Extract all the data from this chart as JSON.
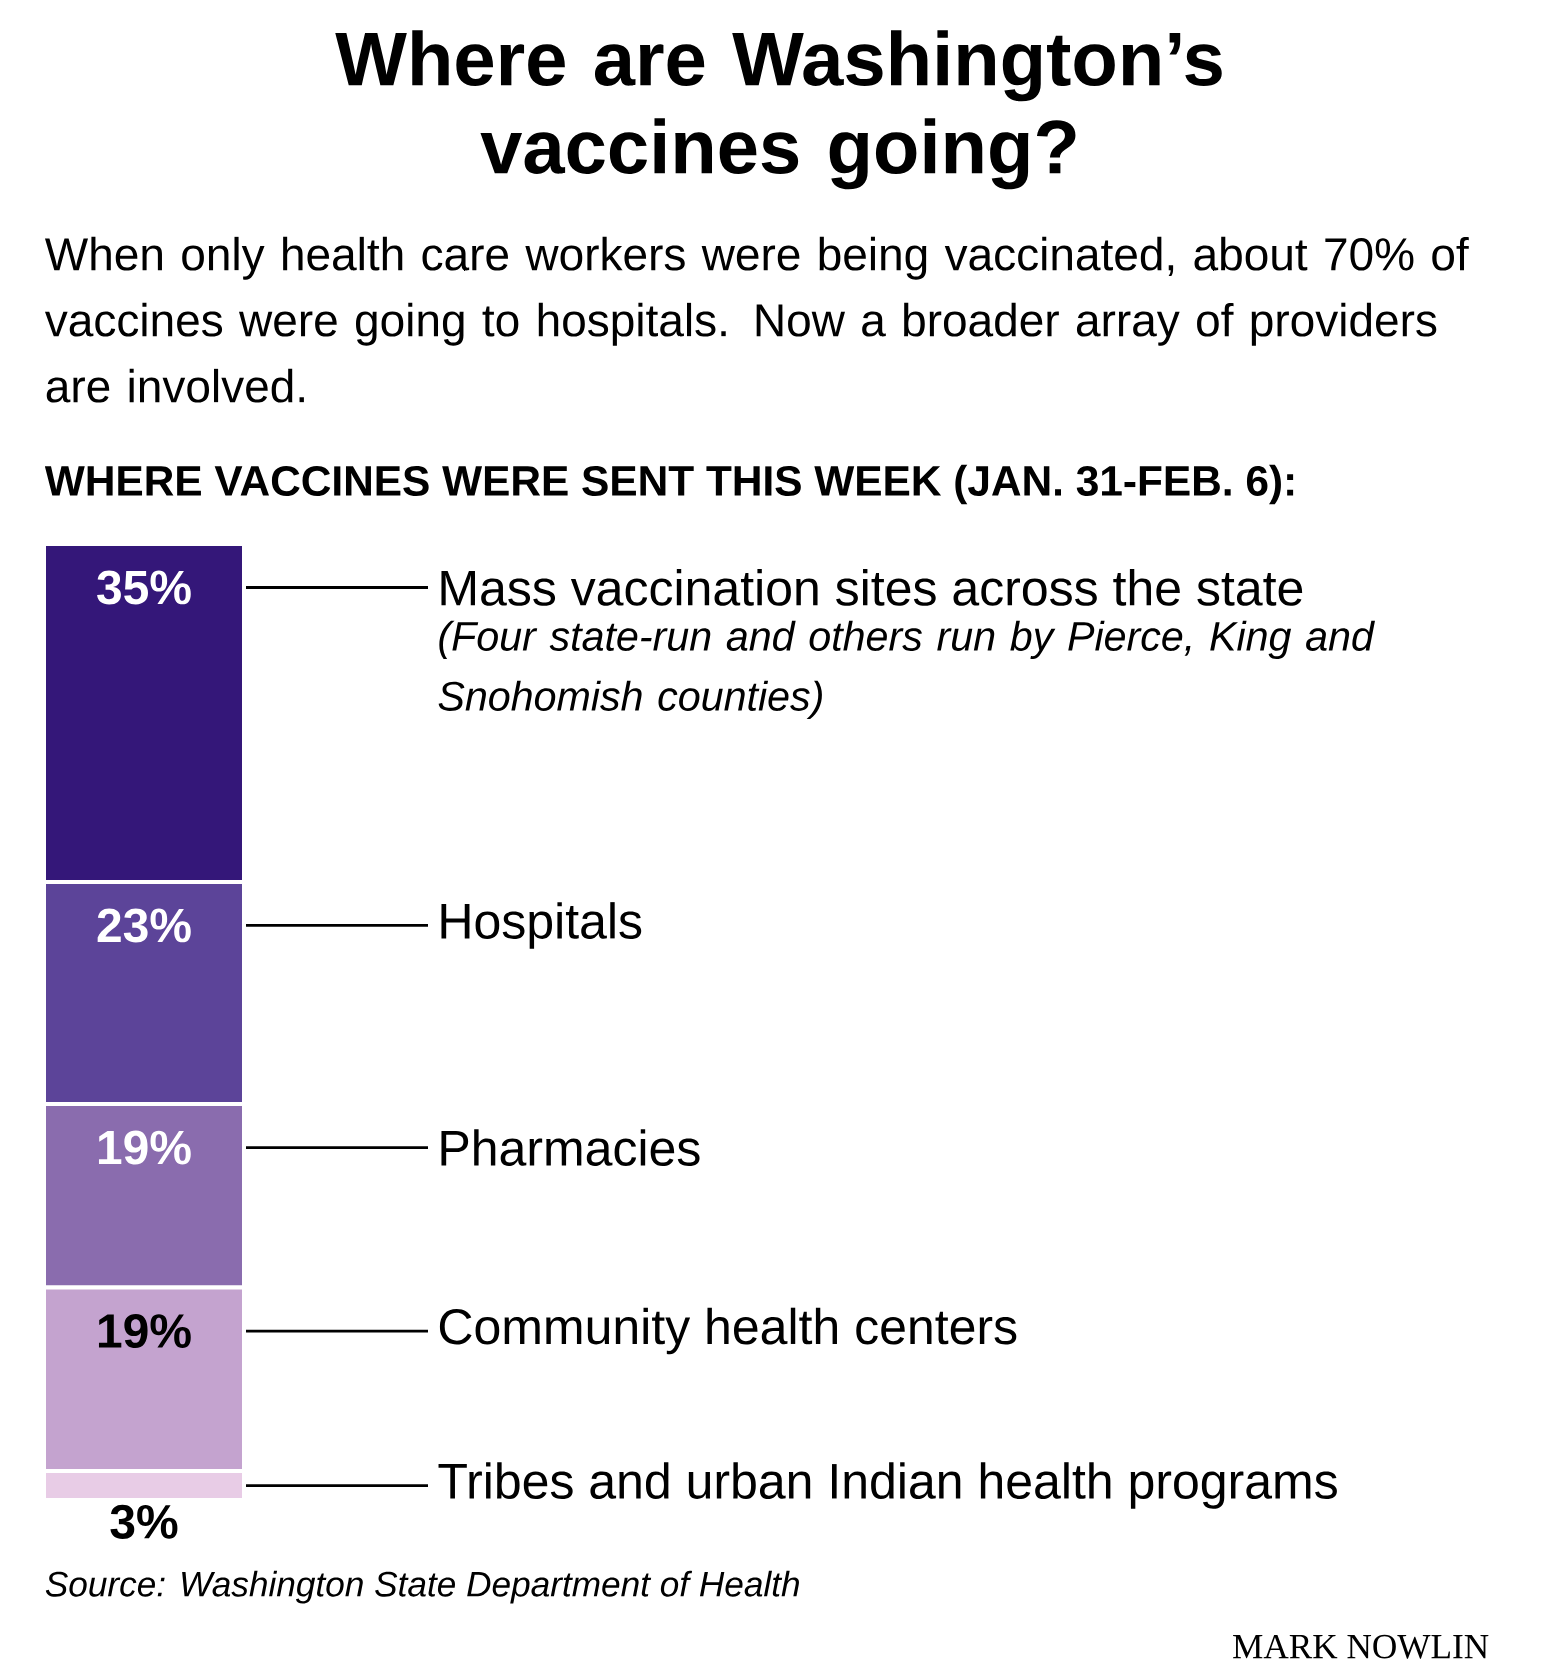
{
  "chart_data": {
    "type": "bar",
    "stacked": true,
    "title": "Where are Washington’s vaccines going?",
    "subtitle": "When only health care workers were being vaccinated, about 70% of vaccines were going to hospitals. Now a broader array of providers are involved.",
    "annotations": [
      "WHERE VACCINES WERE SENT THIS WEEK (JAN. 31-FEB. 6):",
      "(Four state-run and others run by Pierce, King and Snohomish counties)",
      "Source: Washington State Department of Health",
      "MARK NOWLIN"
    ],
    "categories": [
      null
    ],
    "series": [
      {
        "name": "Tribes and urban Indian health programs",
        "color": "#e8cce6",
        "values": [
          3
        ],
        "value_labels": [
          "3%"
        ]
      },
      {
        "name": "Community health centers",
        "color": "#c4a3cf",
        "values": [
          19
        ],
        "value_labels": [
          "19%"
        ]
      },
      {
        "name": "Pharmacies",
        "color": "#8a6cae",
        "values": [
          19
        ],
        "value_labels": [
          "19%"
        ]
      },
      {
        "name": "Hospitals",
        "color": "#5c4499",
        "values": [
          23
        ],
        "value_labels": [
          "23%"
        ]
      },
      {
        "name": "Mass vaccination sites across the state",
        "color": "#341779",
        "values": [
          35
        ],
        "value_labels": [
          "35%"
        ]
      }
    ]
  }
}
